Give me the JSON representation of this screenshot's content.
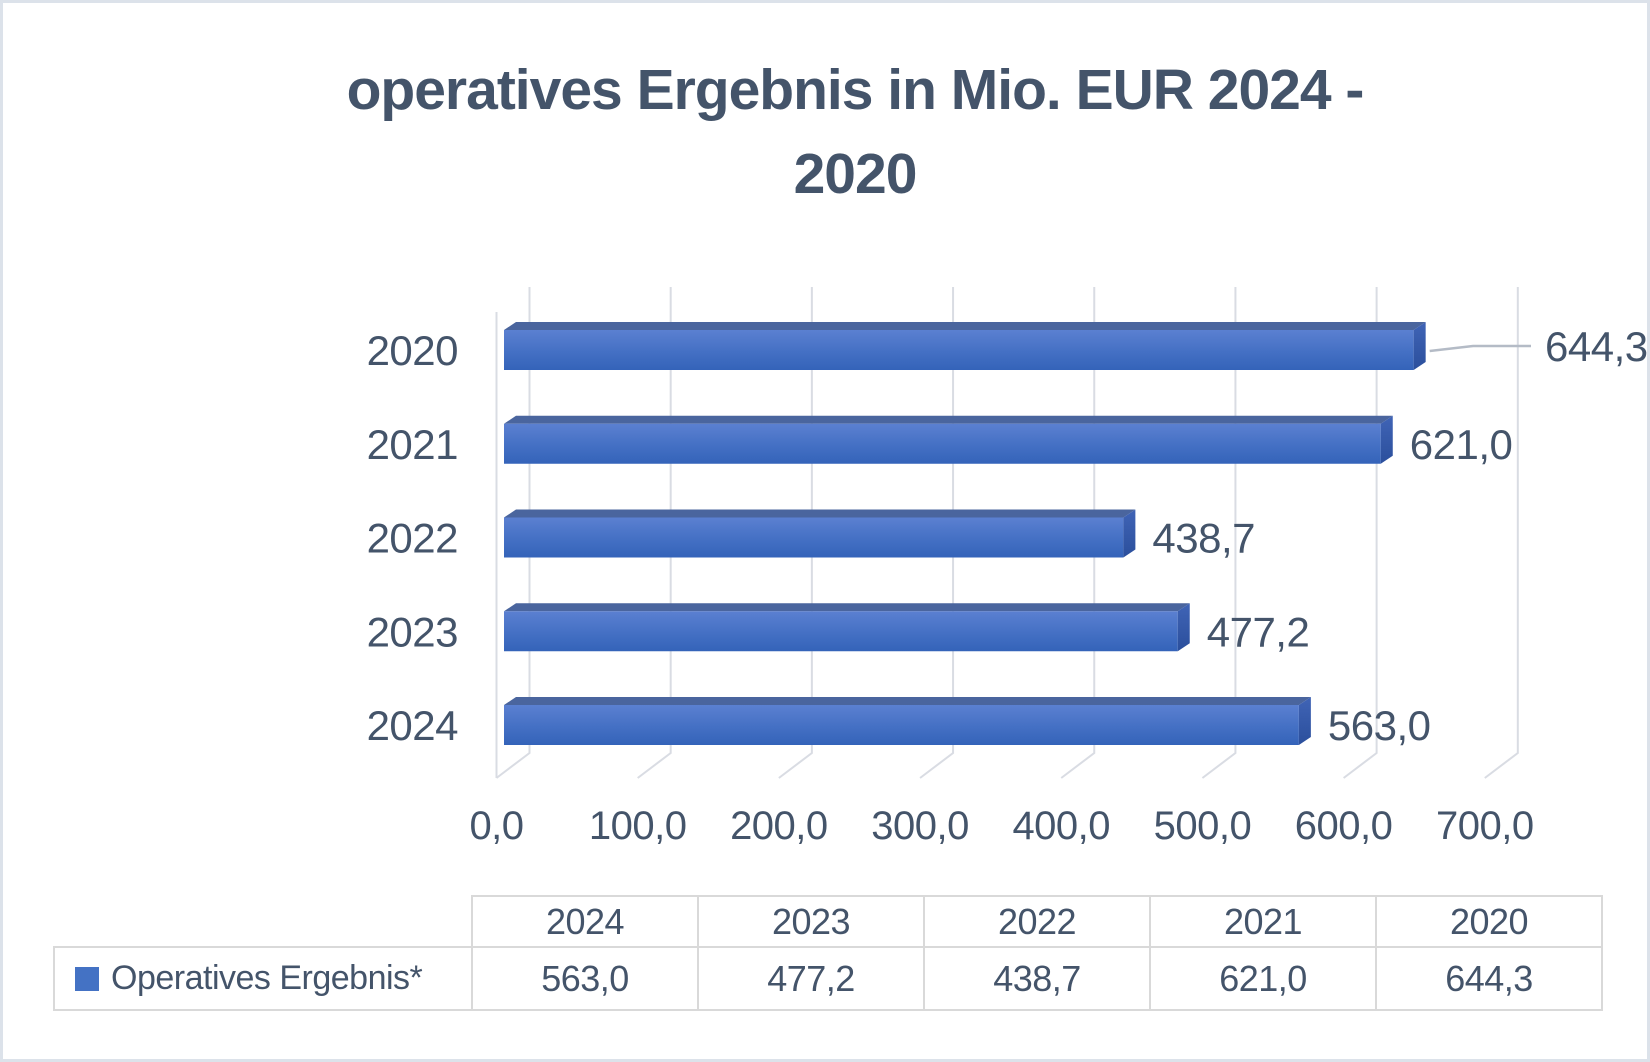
{
  "title": {
    "line1": "operatives Ergebnis in Mio. EUR 2024 -",
    "line2": "2020",
    "full": "operatives Ergebnis in Mio. EUR 2024 - 2020"
  },
  "chart_data": {
    "type": "bar",
    "orientation": "horizontal-3d",
    "title": "operatives Ergebnis in Mio. EUR 2024 - 2020",
    "series_name": "Operatives Ergebnis*",
    "categories": [
      "2020",
      "2021",
      "2022",
      "2023",
      "2024"
    ],
    "values": [
      644.3,
      621.0,
      438.7,
      477.2,
      563.0
    ],
    "value_labels": [
      "644,3",
      "621,0",
      "438,7",
      "477,2",
      "563,0"
    ],
    "xlabel": "",
    "ylabel": "",
    "xlim": [
      0,
      700
    ],
    "x_tick_step": 100,
    "x_ticks": [
      "0,0",
      "100,0",
      "200,0",
      "300,0",
      "400,0",
      "500,0",
      "600,0",
      "700,0"
    ],
    "grid": true,
    "legend_position": "table-bottom"
  },
  "table": {
    "years": [
      "2024",
      "2023",
      "2022",
      "2021",
      "2020"
    ],
    "values": [
      "563,0",
      "477,2",
      "438,7",
      "621,0",
      "644,3"
    ],
    "legend_label": "Operatives Ergebnis*"
  },
  "colors": {
    "text": "#44546a",
    "frame": "#dce2ea",
    "table_border": "#d9d9d9",
    "gridline": "#d9dce3",
    "legend_swatch": "#4472c4",
    "bar_front_top": "#5b80d1",
    "bar_front_mid": "#4470c4",
    "bar_front_bottom": "#3463b9",
    "bar_top_face": "#4a659e",
    "bar_cap_top": "#4064b6",
    "bar_cap_bottom": "#2b4f9c",
    "leader_line": "#b4bbc6"
  }
}
